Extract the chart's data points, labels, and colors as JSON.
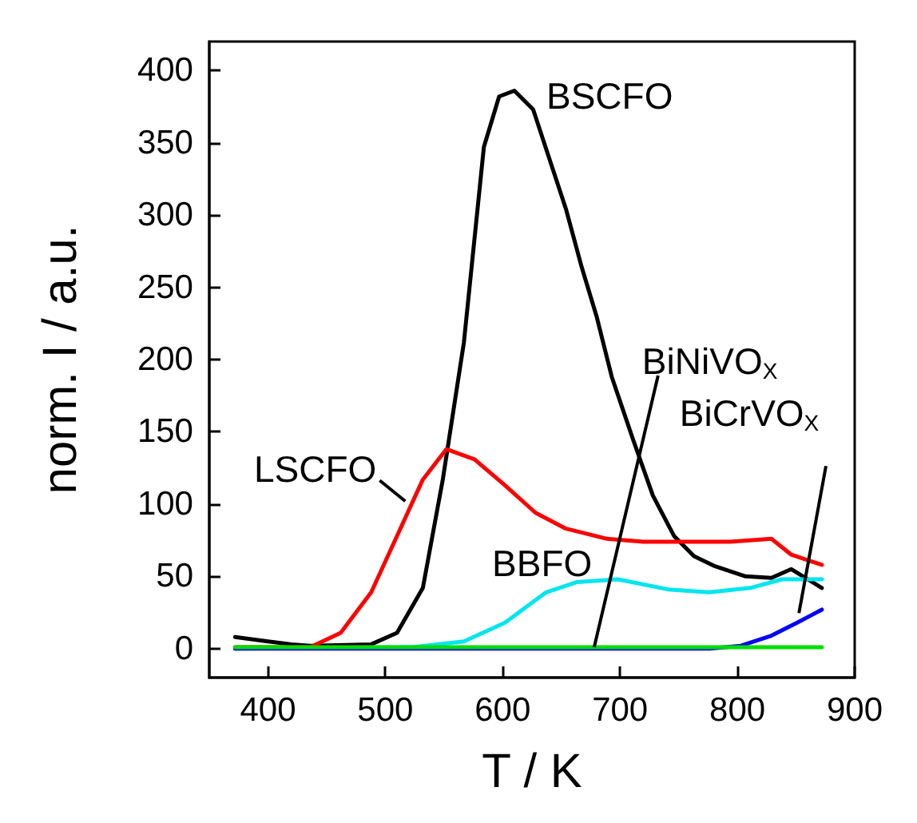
{
  "chart_data": {
    "type": "line",
    "xlabel": "T / K",
    "ylabel": "norm. I / a.u.",
    "xlim": [
      350,
      900
    ],
    "xticks": [
      400,
      500,
      600,
      700,
      800,
      900
    ],
    "ylim": [
      -20,
      420
    ],
    "yticks": [
      0,
      50,
      100,
      150,
      200,
      250,
      300,
      350,
      400
    ],
    "grid": false,
    "marker": "none",
    "line_style": "solid",
    "series": [
      {
        "color": "#000000",
        "x": [
          372,
          400,
          420,
          436,
          488,
          510,
          532,
          549,
          567,
          584,
          597,
          610,
          626,
          641,
          654,
          667,
          680,
          693,
          711,
          728,
          746,
          763,
          781,
          807,
          829,
          846,
          872
        ],
        "values": [
          8,
          5,
          3,
          2,
          3,
          11,
          42,
          117,
          212,
          347,
          382,
          386,
          373,
          336,
          304,
          265,
          230,
          188,
          145,
          106,
          78,
          64,
          57,
          50,
          49,
          55,
          42
        ]
      },
      {
        "color": "#ff0000",
        "x": [
          372,
          436,
          462,
          488,
          510,
          532,
          552,
          576,
          602,
          628,
          654,
          689,
          720,
          763,
          794,
          829,
          846,
          872
        ],
        "values": [
          1,
          1,
          11,
          39,
          78,
          117,
          138,
          131,
          113,
          94,
          83,
          76,
          74,
          74,
          74,
          76,
          65,
          58
        ]
      },
      {
        "color": "#00e5ee",
        "x": [
          372,
          523,
          567,
          602,
          637,
          663,
          698,
          741,
          776,
          811,
          838,
          872
        ],
        "values": [
          0,
          1,
          5,
          18,
          39,
          46,
          48,
          41,
          39,
          42,
          48,
          48
        ]
      },
      {
        "color": "#0000ff",
        "x": [
          372,
          776,
          803,
          829,
          851,
          872
        ],
        "values": [
          0,
          0,
          2,
          9,
          18,
          27
        ]
      },
      {
        "color": "#00dd00",
        "x": [
          372,
          678,
          872
        ],
        "values": [
          1,
          1,
          1
        ]
      }
    ],
    "annotations": [
      {
        "text": "BSCFO",
        "x": 610,
        "y": 386
      },
      {
        "text": "LSCFO",
        "x": 517,
        "y": 102
      },
      {
        "text": "BBFO",
        "x": 650,
        "y": 38
      },
      {
        "text": "BiNiVO$_{X}$",
        "x": 678,
        "y": 1
      },
      {
        "text": "BiCrVO$_{X}$",
        "x": 851,
        "y": 18
      }
    ]
  }
}
